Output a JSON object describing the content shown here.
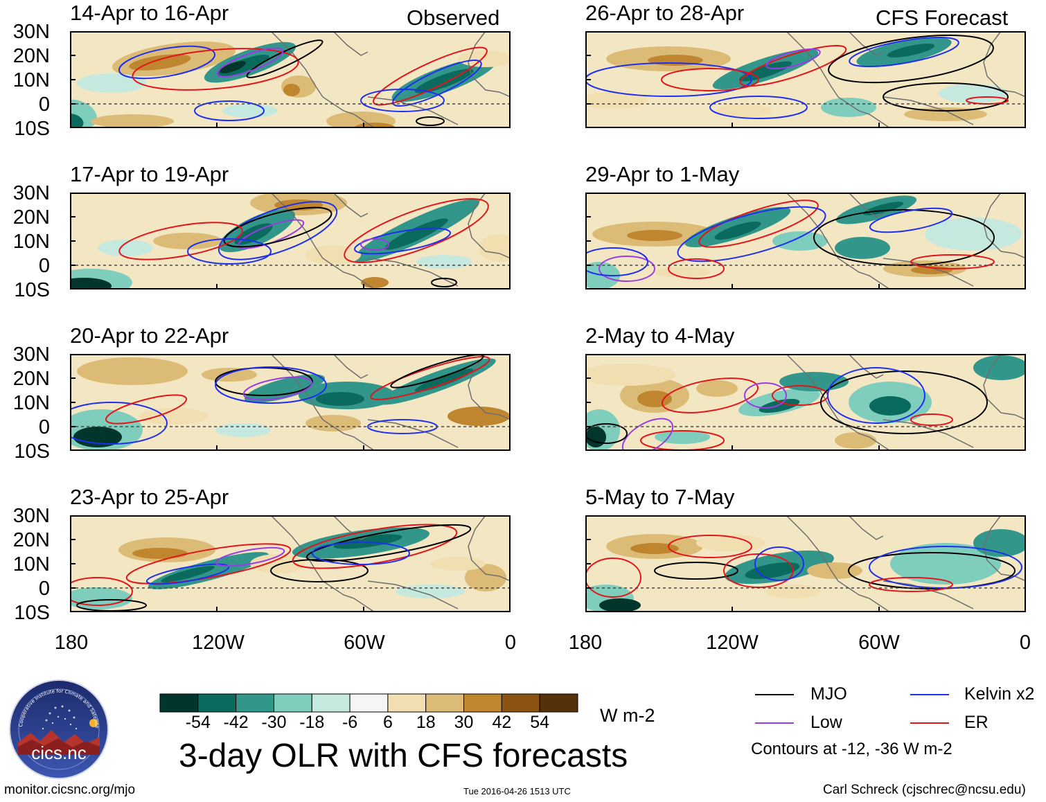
{
  "header": {
    "observed_label": "Observed",
    "forecast_label": "CFS Forecast"
  },
  "panels_observed": [
    {
      "period": "14-Apr to 16-Apr"
    },
    {
      "period": "17-Apr to 19-Apr"
    },
    {
      "period": "20-Apr to 22-Apr"
    },
    {
      "period": "23-Apr to 25-Apr"
    }
  ],
  "panels_forecast": [
    {
      "period": "26-Apr to 28-Apr"
    },
    {
      "period": "29-Apr to 1-May"
    },
    {
      "period": "2-May to 4-May"
    },
    {
      "period": "5-May to 7-May"
    }
  ],
  "axes": {
    "lat_labels": [
      "30N",
      "20N",
      "10N",
      "0",
      "10S"
    ],
    "lon_labels": [
      "180",
      "120W",
      "60W",
      "0"
    ]
  },
  "colorbar": {
    "unit": "W m-2",
    "tick_labels": [
      "-54",
      "-42",
      "-30",
      "-18",
      "-6",
      "6",
      "18",
      "30",
      "42",
      "54"
    ],
    "colors": [
      "#02352c",
      "#0a6a5e",
      "#33968a",
      "#7fcdbd",
      "#c6e9df",
      "#f5f5f5",
      "#f1dfb2",
      "#dcbb76",
      "#bf852f",
      "#8a530f",
      "#553008"
    ]
  },
  "legend": {
    "items": [
      {
        "label": "MJO",
        "color": "#000000"
      },
      {
        "label": "Kelvin x2",
        "color": "#1f2ff0"
      },
      {
        "label": "Low",
        "color": "#9a3be6"
      },
      {
        "label": "ER",
        "color": "#e3141a"
      }
    ],
    "note": "Contours at -12, -36 W m-2"
  },
  "title": "3-day OLR with CFS forecasts",
  "logo_text": "cics.nc",
  "logo_ring_text": "Cooperative Institute for Climate and Satellites",
  "footer": {
    "url": "monitor.cicsnc.org/mjo",
    "timestamp": "Tue 2016-04-26 1513 UTC",
    "author": "Carl Schreck (cjschrec@ncsu.edu)"
  }
}
